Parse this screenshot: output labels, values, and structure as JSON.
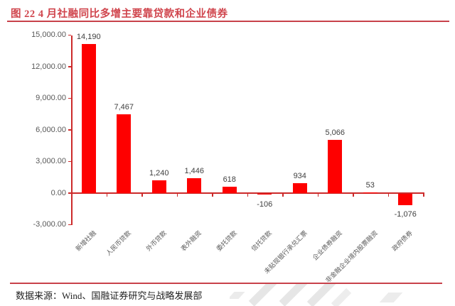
{
  "header": {
    "title": "图 22 4 月社融同比多增主要靠贷款和企业债券",
    "accent_color": "#d0454d",
    "rule_color": "#c8414a"
  },
  "footer": {
    "source": "数据来源：Wind、国融证券研究与战略发展部"
  },
  "icons": {
    "watermark": "guorong-securities-logo-watermark"
  },
  "chart_data": {
    "type": "bar",
    "title": "图 22 4 月社融同比多增主要靠贷款和企业债券",
    "categories": [
      "新增社融",
      "人民币贷款",
      "外币贷款",
      "表外融资",
      "委托贷款",
      "信托贷款",
      "未贴现银行承兑汇票",
      "企业债券融资",
      "非金融企业境内股票融资",
      "政府债券"
    ],
    "values": [
      14190,
      7467,
      1240,
      1446,
      618,
      -106,
      934,
      5066,
      53,
      -1076
    ],
    "value_labels": [
      "14,190",
      "7,467",
      "1,240",
      "1,446",
      "618",
      "-106",
      "934",
      "5,066",
      "53",
      "-1,076"
    ],
    "ytick_labels": [
      "15,000.00",
      "12,000.00",
      "9,000.00",
      "6,000.00",
      "3,000.00",
      "0.00",
      "-3,000.00"
    ],
    "ytick_values": [
      15000,
      12000,
      9000,
      6000,
      3000,
      0,
      -3000
    ],
    "ylim": [
      -3000,
      15000
    ],
    "xlabel": "",
    "ylabel": "",
    "grid": false,
    "legend_position": "none",
    "bar_color": "#fe0000",
    "axis_color": "#cc2a2a",
    "label_color": "#404040",
    "tick_label_color": "#595959"
  }
}
